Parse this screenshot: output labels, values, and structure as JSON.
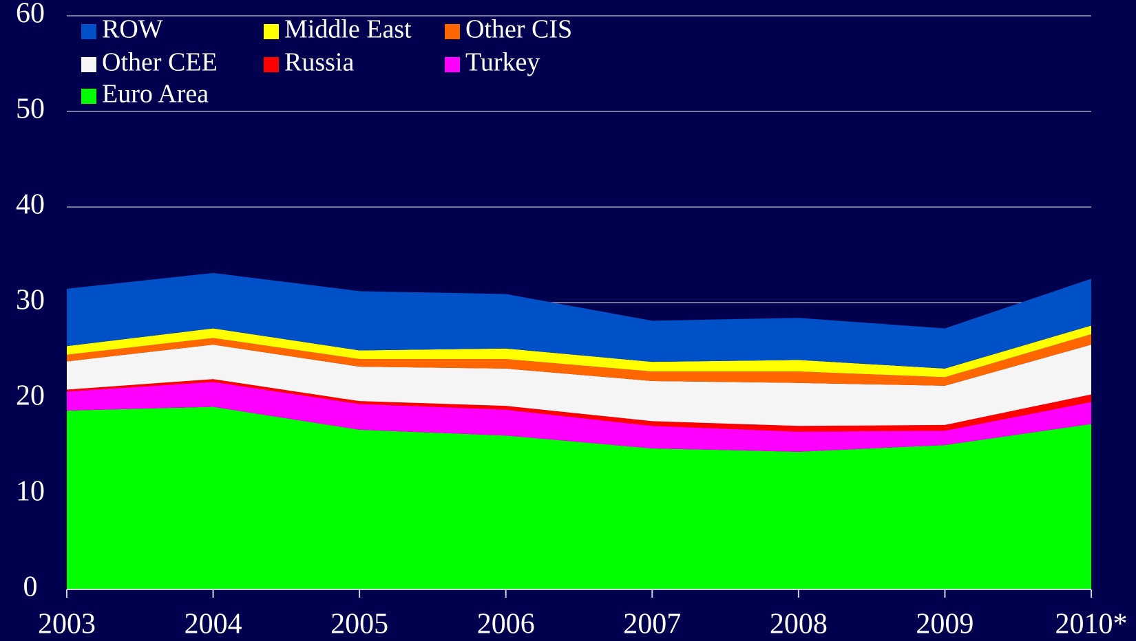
{
  "chart_data": {
    "type": "stacked_area",
    "categories": [
      "2003",
      "2004",
      "2005",
      "2006",
      "2007",
      "2008",
      "2009",
      "2010*"
    ],
    "series": [
      {
        "name": "Euro Area",
        "color": "#00ff00",
        "values": [
          18.7,
          19.1,
          16.7,
          16.1,
          14.75,
          14.4,
          15.1,
          17.3
        ]
      },
      {
        "name": "Turkey",
        "color": "#ff00ff",
        "values": [
          2.0,
          2.6,
          2.7,
          2.7,
          2.35,
          2.1,
          1.5,
          2.3
        ]
      },
      {
        "name": "Russia",
        "color": "#ff0000",
        "values": [
          0.2,
          0.3,
          0.3,
          0.4,
          0.5,
          0.6,
          0.6,
          0.8
        ]
      },
      {
        "name": "Other CEE",
        "color": "#f5f5f5",
        "values": [
          2.95,
          3.6,
          3.6,
          3.9,
          4.2,
          4.5,
          4.1,
          5.2
        ]
      },
      {
        "name": "Other CIS",
        "color": "#ff6600",
        "values": [
          0.7,
          0.7,
          0.8,
          1.0,
          1.0,
          1.2,
          0.9,
          1.1
        ]
      },
      {
        "name": "Middle East",
        "color": "#ffff00",
        "values": [
          0.9,
          1.0,
          0.9,
          1.1,
          1.0,
          1.2,
          0.9,
          0.9
        ]
      },
      {
        "name": "ROW",
        "color": "#0050c8",
        "values": [
          6.0,
          5.8,
          6.2,
          5.7,
          4.3,
          4.4,
          4.2,
          4.9
        ]
      }
    ],
    "legend_order": [
      6,
      5,
      4,
      3,
      2,
      1,
      0
    ],
    "ylim": [
      0,
      60
    ],
    "yticks": [
      0,
      10,
      20,
      30,
      40,
      50,
      60
    ],
    "grid": true
  }
}
